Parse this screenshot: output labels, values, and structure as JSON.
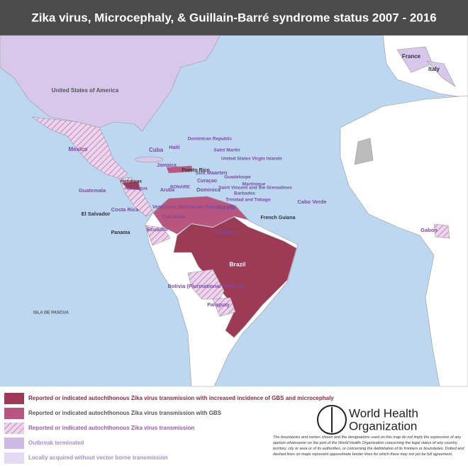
{
  "header": {
    "title": "Zika virus, Microcephaly, & Guillain-Barré syndrome status 2007 - 2016"
  },
  "map": {
    "labels": [
      {
        "text": "United States of America"
      },
      {
        "text": "France"
      },
      {
        "text": "Italy"
      },
      {
        "text": "Mexico"
      },
      {
        "text": "Cuba"
      },
      {
        "text": "Haiti"
      },
      {
        "text": "Dominican Republic"
      },
      {
        "text": "Jamaica"
      },
      {
        "text": "Puerto Rico"
      },
      {
        "text": "Saint Martin"
      },
      {
        "text": "United States Virgin Islands"
      },
      {
        "text": "Sint Maarten"
      },
      {
        "text": "Guadeloupe"
      },
      {
        "text": "Martinique"
      },
      {
        "text": "Curaçao"
      },
      {
        "text": "BONAIRE"
      },
      {
        "text": "Aruba"
      },
      {
        "text": "Dominica"
      },
      {
        "text": "Saint Vincent and the Grenadines"
      },
      {
        "text": "Barbados"
      },
      {
        "text": "Trinidad and Tobago"
      },
      {
        "text": "Honduras"
      },
      {
        "text": "Nicaragua"
      },
      {
        "text": "Guatemala"
      },
      {
        "text": "El Salvador"
      },
      {
        "text": "Costa Rica"
      },
      {
        "text": "Panama"
      },
      {
        "text": "Colombia"
      },
      {
        "text": "Venezuela (Bolivarian Republic of)"
      },
      {
        "text": "Guyana"
      },
      {
        "text": "Suriname"
      },
      {
        "text": "French Guiana"
      },
      {
        "text": "Ecuador"
      },
      {
        "text": "Brazil"
      },
      {
        "text": "Bolivia (Plurinational State of)"
      },
      {
        "text": "Paraguay"
      },
      {
        "text": "Cabo Verde"
      },
      {
        "text": "Gabon"
      },
      {
        "text": "ISLA DE PASCUA"
      }
    ]
  },
  "legend": {
    "items": [
      {
        "text": "Reported or indicated autochthonous Zika virus transmission with increased incidence of GBS and microcephaly"
      },
      {
        "text": "Reported or indicated autochthonous Zika virus transmission with GBS"
      },
      {
        "text": "Reported or indicated autochthonous Zika virus transmission"
      },
      {
        "text": "Outbreak terminated"
      },
      {
        "text": "Locally acquired without vector borne transmission"
      }
    ]
  },
  "logo": {
    "lines": [
      "World Health",
      "Organization"
    ]
  },
  "disclaimer": "The boundaries and names shown and the designations used on this map do not imply the expression of any opinion whatsoever on the part of the World Health Organization concerning the legal status of any country, territory, city or area or of its authorities, or concerning the delimitation of its frontiers or boundaries. Dotted and dashed lines on maps represent approximate border lines for which there may not yet be full agreement."
}
